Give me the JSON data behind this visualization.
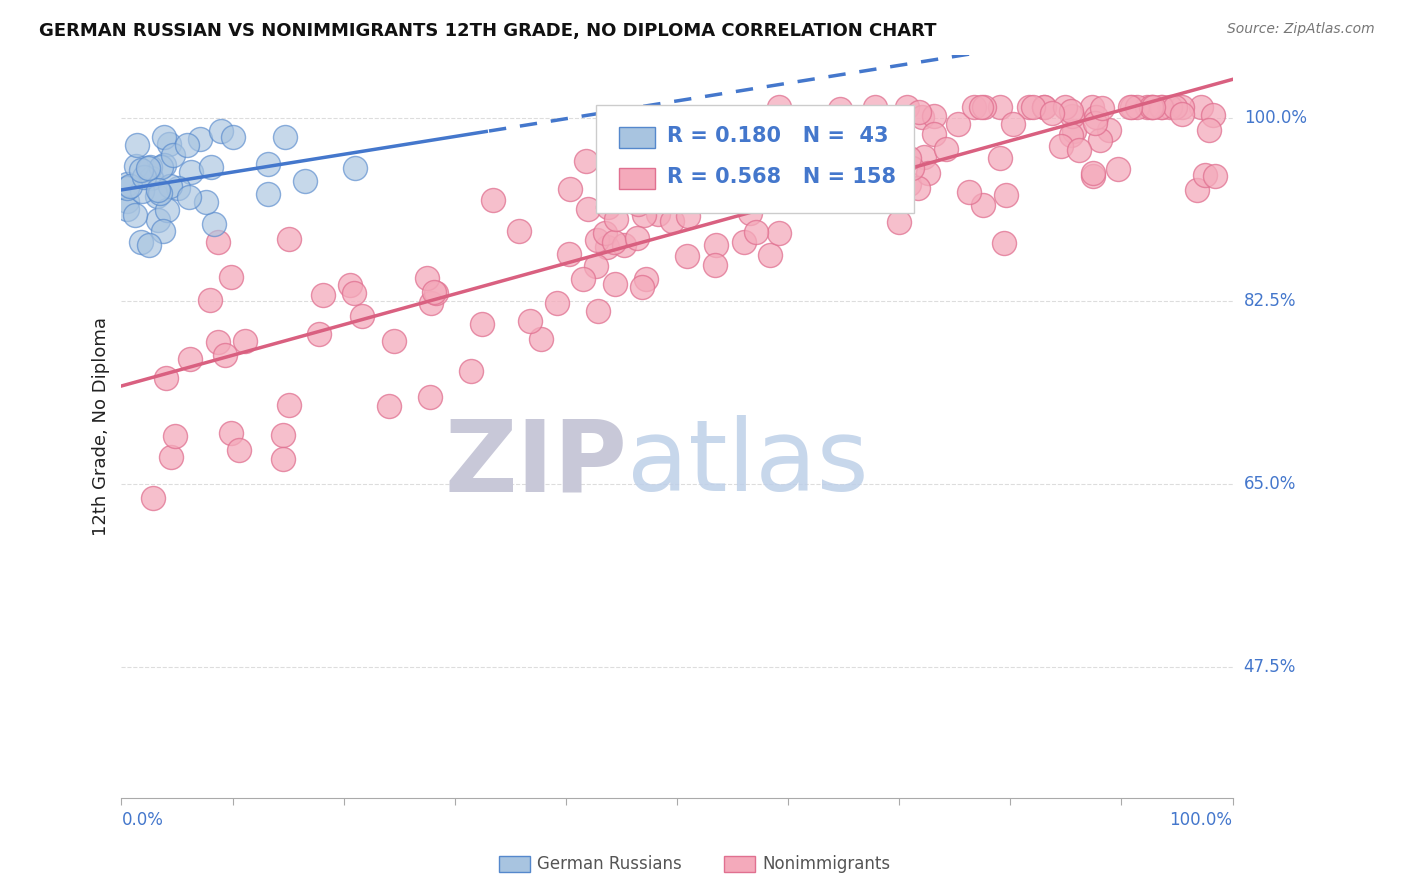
{
  "title": "GERMAN RUSSIAN VS NONIMMIGRANTS 12TH GRADE, NO DIPLOMA CORRELATION CHART",
  "source": "Source: ZipAtlas.com",
  "ylabel": "12th Grade, No Diploma",
  "blue_R": 0.18,
  "blue_N": 43,
  "pink_R": 0.568,
  "pink_N": 158,
  "blue_fill": "#A8C4E0",
  "blue_edge": "#5588CC",
  "blue_line": "#4477CC",
  "pink_fill": "#F4AABB",
  "pink_edge": "#E07090",
  "pink_line": "#D96080",
  "legend_label_blue": "German Russians",
  "legend_label_pink": "Nonimmigrants",
  "ytick_vals": [
    0.475,
    0.65,
    0.825,
    1.0
  ],
  "ytick_labels": [
    "47.5%",
    "65.0%",
    "82.5%",
    "100.0%"
  ],
  "xlim": [
    0.0,
    1.0
  ],
  "ylim": [
    0.35,
    1.06
  ],
  "grid_color": "#DDDDDD",
  "blue_seed": 7,
  "pink_seed": 42
}
